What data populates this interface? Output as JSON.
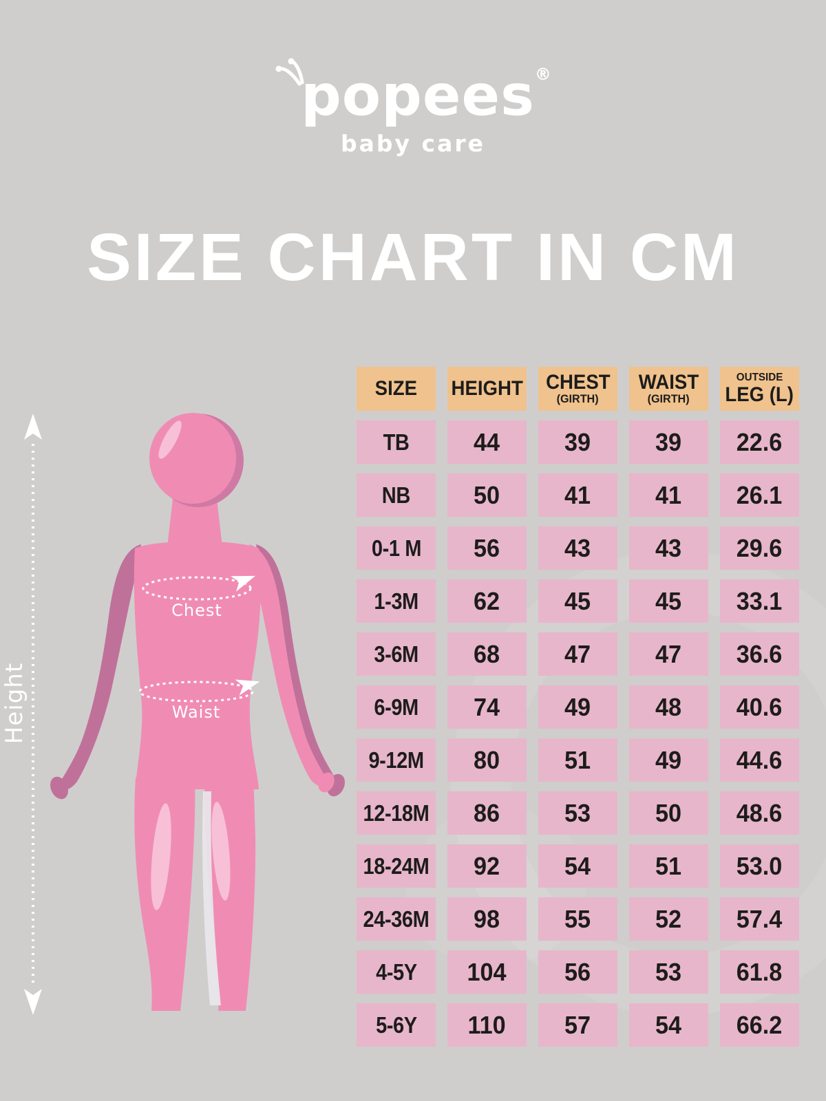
{
  "brand": {
    "logo_text": "popees",
    "registered_mark": "®",
    "tagline": "baby care"
  },
  "title": "SIZE CHART IN CM",
  "figure": {
    "height_label": "Height",
    "chest_label": "Chest",
    "waist_label": "Waist"
  },
  "chart_data": {
    "type": "table",
    "title": "SIZE CHART IN CM",
    "unit": "cm",
    "columns": [
      {
        "lines": [
          {
            "text": "SIZE",
            "cls": "lg"
          }
        ]
      },
      {
        "lines": [
          {
            "text": "HEIGHT",
            "cls": "lg"
          }
        ]
      },
      {
        "lines": [
          {
            "text": "CHEST",
            "cls": "lg"
          },
          {
            "text": "(GIRTH)",
            "cls": "sm"
          }
        ]
      },
      {
        "lines": [
          {
            "text": "WAIST",
            "cls": "lg"
          },
          {
            "text": "(GIRTH)",
            "cls": "sm"
          }
        ]
      },
      {
        "lines": [
          {
            "text": "OUTSIDE",
            "cls": "xs"
          },
          {
            "text": "LEG (L)",
            "cls": "lg"
          }
        ]
      }
    ],
    "rows": [
      [
        "TB",
        "44",
        "39",
        "39",
        "22.6"
      ],
      [
        "NB",
        "50",
        "41",
        "41",
        "26.1"
      ],
      [
        "0-1 M",
        "56",
        "43",
        "43",
        "29.6"
      ],
      [
        "1-3M",
        "62",
        "45",
        "45",
        "33.1"
      ],
      [
        "3-6M",
        "68",
        "47",
        "47",
        "36.6"
      ],
      [
        "6-9M",
        "74",
        "49",
        "48",
        "40.6"
      ],
      [
        "9-12M",
        "80",
        "51",
        "49",
        "44.6"
      ],
      [
        "12-18M",
        "86",
        "53",
        "50",
        "48.6"
      ],
      [
        "18-24M",
        "92",
        "54",
        "51",
        "53.0"
      ],
      [
        "24-36M",
        "98",
        "55",
        "52",
        "57.4"
      ],
      [
        "4-5Y",
        "104",
        "56",
        "53",
        "61.8"
      ],
      [
        "5-6Y",
        "110",
        "57",
        "54",
        "66.2"
      ]
    ]
  },
  "colors": {
    "background": "#cfcecd",
    "header_bg": "#f0c28d",
    "cell_bg": "#e7b6ca",
    "cell_text": "#1d1c1b",
    "white": "#ffffff",
    "figure_pink": "#f08cb4",
    "figure_shadow": "#c0719a",
    "figure_highlight": "#f7c0d6"
  }
}
